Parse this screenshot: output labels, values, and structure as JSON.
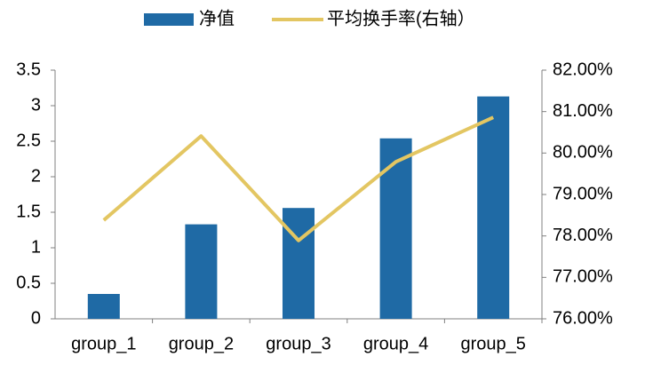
{
  "chart_data": {
    "type": "bar_line",
    "categories": [
      "group_1",
      "group_2",
      "group_3",
      "group_4",
      "group_5"
    ],
    "series": [
      {
        "name": "净值",
        "type": "bar",
        "color": "#1f6aa5",
        "values": [
          0.35,
          1.33,
          1.56,
          2.54,
          3.13
        ]
      },
      {
        "name": "平均换手率(右轴）",
        "type": "line",
        "axis": "y2",
        "color": "#e3c662",
        "values": [
          78.38,
          80.41,
          77.89,
          79.79,
          80.86
        ]
      }
    ],
    "ylim": [
      0,
      3.5
    ],
    "yticks": [
      0,
      0.5,
      1,
      1.5,
      2,
      2.5,
      3,
      3.5
    ],
    "y2lim": [
      76,
      82
    ],
    "y2ticks": [
      {
        "value": 76,
        "label": "76.00%"
      },
      {
        "value": 77,
        "label": "77.00%"
      },
      {
        "value": 78,
        "label": "78.00%"
      },
      {
        "value": 79,
        "label": "79.00%"
      },
      {
        "value": 80,
        "label": "80.00%"
      },
      {
        "value": 81,
        "label": "81.00%"
      },
      {
        "value": 82,
        "label": "82.00%"
      }
    ],
    "legend": "top"
  }
}
